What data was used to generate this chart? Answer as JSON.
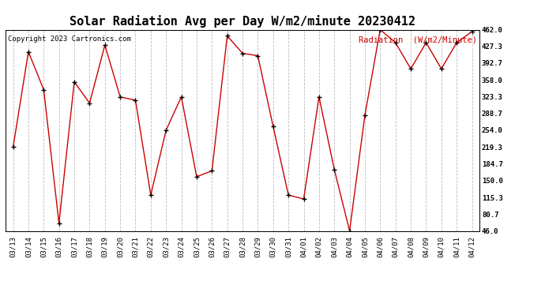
{
  "title": "Solar Radiation Avg per Day W/m2/minute 20230412",
  "copyright": "Copyright 2023 Cartronics.com",
  "legend_label": "Radiation  (W/m2/Minute)",
  "dates": [
    "03/13",
    "03/14",
    "03/15",
    "03/16",
    "03/17",
    "03/18",
    "03/19",
    "03/20",
    "03/21",
    "03/22",
    "03/23",
    "03/24",
    "03/25",
    "03/26",
    "03/27",
    "03/28",
    "03/29",
    "03/30",
    "03/31",
    "04/01",
    "04/02",
    "04/03",
    "04/04",
    "04/05",
    "04/06",
    "04/07",
    "04/08",
    "04/09",
    "04/10",
    "04/11",
    "04/12"
  ],
  "values": [
    219,
    416,
    338,
    62,
    354,
    310,
    430,
    323,
    316,
    120,
    254,
    323,
    158,
    170,
    449,
    413,
    408,
    262,
    120,
    112,
    323,
    173,
    46,
    285,
    462,
    435,
    381,
    435,
    381,
    435,
    458
  ],
  "y_ticks": [
    46.0,
    80.7,
    115.3,
    150.0,
    184.7,
    219.3,
    254.0,
    288.7,
    323.3,
    358.0,
    392.7,
    427.3,
    462.0
  ],
  "line_color": "#cc0000",
  "marker_color": "#000000",
  "bg_color": "#ffffff",
  "grid_color": "#bbbbbb",
  "title_fontsize": 11,
  "copyright_fontsize": 6.5,
  "legend_fontsize": 7.5,
  "tick_fontsize": 6.5,
  "copyright_color": "#000000",
  "legend_color": "#cc0000"
}
